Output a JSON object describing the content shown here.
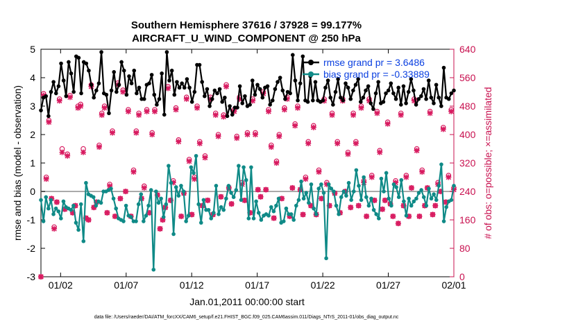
{
  "chart_data": {
    "type": "line",
    "title_line1": "Southern Hemisphere 37616 / 37928 = 99.177%",
    "title_line2": "AIRCRAFT_U_WIND_COMPONENT @ 250 hPa",
    "xlabel": "Jan.01,2011 00:00:00 start",
    "ylabel_left": "rmse and bias (model - observation)",
    "ylabel_right": "# of obs: o=possible; ×=assimilated",
    "footer": "data file: /Users/raeder/DAI/ATM_forcXX/CAM6_setup/f.e21.FHIST_BGC.f09_025.CAM6assim.011/Diags_NTrS_2011-01/obs_diag_output.nc",
    "xlim": [
      0.5,
      32.0
    ],
    "ylim_left": [
      -3,
      5
    ],
    "ylim_right": [
      0,
      640
    ],
    "x_ticks": [
      {
        "v": 2,
        "label": "01/02"
      },
      {
        "v": 7,
        "label": "01/07"
      },
      {
        "v": 12,
        "label": "01/12"
      },
      {
        "v": 17,
        "label": "01/17"
      },
      {
        "v": 22,
        "label": "01/22"
      },
      {
        "v": 27,
        "label": "01/27"
      },
      {
        "v": 32,
        "label": "02/01"
      }
    ],
    "y_ticks_left": [
      -3,
      -2,
      -1,
      0,
      1,
      2,
      3,
      4,
      5
    ],
    "y_ticks_right": [
      0,
      80,
      160,
      240,
      320,
      400,
      480,
      560,
      640
    ],
    "colors": {
      "rmse": "#000000",
      "bias": "#0f8a87",
      "obs": "#d81b60",
      "zero": "#aaaaaa",
      "legend_text": "#0a3fe0",
      "right_axis": "#c8104f"
    },
    "series": [
      {
        "name": "rmse grand pr = 3.6486",
        "color": "#000000",
        "values": [
          2.85,
          3.3,
          3.35,
          2.65,
          3.5,
          3.85,
          3.45,
          3.7,
          4.5,
          3.9,
          3.35,
          4.55,
          4.15,
          3.5,
          4.75,
          4.7,
          3.45,
          4.55,
          4.5,
          4.25,
          3.75,
          3.3,
          3.55,
          3.8,
          4.9,
          3.45,
          3.4,
          2.75,
          3.55,
          4.2,
          3.5,
          3.75,
          4.55,
          4.25,
          3.4,
          4.05,
          3.8,
          4.25,
          3.45,
          3.65,
          3.25,
          3.25,
          3.75,
          3.8,
          4.1,
          3.4,
          3.05,
          3.25,
          4.15,
          2.7,
          4.9,
          3.9,
          4.25,
          3.4,
          3.85,
          3.65,
          3.8,
          3.65,
          3.95,
          3.65,
          3.15,
          3.5,
          4.45,
          4.45,
          3.85,
          3.35,
          3.6,
          3.0,
          3.25,
          3.55,
          3.45,
          3.6,
          3.15,
          3.3,
          2.65,
          3.0,
          2.7,
          2.95,
          2.95,
          3.7,
          3.1,
          3.35,
          3.0,
          3.05,
          3.9,
          3.4,
          3.75,
          3.6,
          3.3,
          3.65,
          3.7,
          3.05,
          3.2,
          3.6,
          3.85,
          4.0,
          3.55,
          3.25,
          3.5,
          3.45,
          4.8,
          3.9,
          3.2,
          3.8,
          4.75,
          3.2,
          3.15,
          4.05,
          3.2,
          3.85,
          3.2,
          3.15,
          3.2,
          3.65,
          3.9,
          3.3,
          3.05,
          3.5,
          3.95,
          3.3,
          3.2,
          3.8,
          3.65,
          3.25,
          3.55,
          3.75,
          3.95,
          3.15,
          3.3,
          3.55,
          3.7,
          3.1,
          2.9,
          3.45,
          3.85,
          3.1,
          3.15,
          3.45,
          3.55,
          3.8,
          3.45,
          3.25,
          3.65,
          3.05,
          3.7,
          3.1,
          3.5,
          3.95,
          3.55,
          3.05,
          3.25,
          3.35,
          3.6,
          3.25,
          3.9,
          3.3,
          3.1,
          3.75,
          3.3,
          3.0,
          4.35,
          3.3,
          3.25,
          3.45,
          3.55
        ]
      },
      {
        "name": "bias grand pr = -0.33889",
        "color": "#0f8a87",
        "values": [
          -0.3,
          -1.05,
          -0.2,
          -0.6,
          -0.3,
          -0.8,
          -0.6,
          -0.7,
          -0.95,
          -0.35,
          -0.55,
          -0.6,
          -0.65,
          -0.5,
          -1.1,
          -1.35,
          -0.45,
          -1.75,
          0.3,
          -0.1,
          -0.15,
          -0.2,
          -0.5,
          -0.35,
          -0.4,
          0.0,
          0.0,
          0.05,
          0.1,
          -0.25,
          -0.6,
          -0.95,
          -1.0,
          -1.05,
          -0.5,
          -0.85,
          -0.9,
          -1.05,
          -1.05,
          -0.45,
          -0.1,
          -1.05,
          -0.85,
          -0.5,
          0.05,
          -2.75,
          0.0,
          -0.4,
          -0.25,
          -0.9,
          -0.45,
          0.9,
          0.3,
          -1.5,
          0.15,
          -0.15,
          0.2,
          0.0,
          -1.05,
          -0.85,
          0.85,
          0.65,
          1.25,
          -0.45,
          -1.1,
          -0.3,
          -0.65,
          -0.65,
          -0.95,
          -0.75,
          0.2,
          -0.8,
          -0.55,
          -0.65,
          -0.25,
          0.2,
          -0.05,
          -0.2,
          0.05,
          0.9,
          -0.3,
          0.85,
          0.4,
          -0.95,
          0.85,
          -0.95,
          -0.35,
          -0.75,
          -1.0,
          -0.85,
          -0.8,
          -0.85,
          -0.55,
          -0.7,
          -0.5,
          -0.25,
          -1.1,
          -1.05,
          -0.6,
          -0.8,
          -0.8,
          -1.0,
          -0.5,
          -0.3,
          0.35,
          -0.25,
          -0.05,
          -0.4,
          0.25,
          -0.6,
          -0.8,
          0.1,
          0.25,
          -0.05,
          -2.35,
          0.25,
          0.1,
          0.0,
          -0.5,
          -0.8,
          -0.2,
          0.0,
          -0.15,
          0.3,
          -0.3,
          0.0,
          0.75,
          0.2,
          -0.3,
          0.5,
          -0.2,
          -0.5,
          -0.25,
          -0.65,
          -0.8,
          -0.95,
          0.45,
          0.0,
          0.65,
          -0.25,
          -0.5,
          0.25,
          0.15,
          -0.2,
          0.4,
          -0.35,
          -0.85,
          -0.25,
          -0.5,
          -0.35,
          -0.25,
          -0.05,
          0.05,
          -0.2,
          -0.5,
          0.1,
          -0.25,
          -0.1,
          -0.3,
          0.2,
          0.95,
          -1.05,
          -0.55,
          -0.35,
          -0.3,
          0.2
        ]
      },
      {
        "name": "obs_possible",
        "color": "#d81b60",
        "values": [
          0,
          515,
          280,
          440,
          220,
          140,
          210,
          500,
          360,
          190,
          345,
          510,
          180,
          200,
          480,
          485,
          360,
          165,
          160,
          540,
          195,
          210,
          370,
          460,
          480,
          180,
          260,
          410,
          170,
          545,
          220,
          525,
          240,
          470,
          170,
          300,
          410,
          460,
          220,
          255,
          470,
          180,
          405,
          470,
          230,
          135,
          160,
          195,
          535,
          215,
          270,
          475,
          385,
          170,
          235,
          505,
          330,
          175,
          280,
          480,
          380,
          200,
          340,
          215,
          505,
          175,
          460,
          400,
          225,
          455,
          540,
          250,
          205,
          470,
          395,
          505,
          265,
          215,
          405,
          180,
          500,
          405,
          245,
          225,
          520,
          245,
          470,
          370,
          165,
          325,
          400,
          220,
          475,
          505,
          170,
          250,
          430,
          480,
          245,
          175,
          280,
          380,
          200,
          425,
          175,
          300,
          220,
          500,
          265,
          200,
          460,
          235,
          380,
          180,
          500,
          240,
          350,
          195,
          460,
          380,
          200,
          480,
          270,
          170,
          500,
          285,
          215,
          465,
          355,
          190,
          215,
          435,
          205,
          170,
          270,
          150,
          460,
          200,
          285,
          170,
          250,
          500,
          360,
          170,
          300,
          200,
          250,
          465,
          175,
          200,
          265,
          240,
          420,
          210,
          285,
          470,
          250
        ]
      },
      {
        "name": "obs_assimilated",
        "color": "#d81b60",
        "values": [
          0,
          510,
          275,
          435,
          220,
          135,
          210,
          495,
          350,
          190,
          340,
          505,
          180,
          200,
          475,
          480,
          350,
          165,
          160,
          535,
          195,
          210,
          365,
          455,
          475,
          180,
          255,
          405,
          170,
          540,
          220,
          520,
          240,
          465,
          170,
          295,
          405,
          455,
          220,
          250,
          465,
          180,
          400,
          465,
          230,
          135,
          160,
          195,
          530,
          215,
          265,
          470,
          380,
          170,
          235,
          500,
          325,
          175,
          275,
          475,
          375,
          200,
          335,
          215,
          500,
          175,
          455,
          395,
          225,
          450,
          535,
          250,
          205,
          465,
          390,
          500,
          260,
          215,
          400,
          180,
          495,
          400,
          245,
          225,
          515,
          245,
          465,
          365,
          165,
          320,
          395,
          220,
          470,
          500,
          170,
          250,
          425,
          475,
          245,
          175,
          275,
          375,
          200,
          420,
          175,
          295,
          220,
          495,
          260,
          200,
          455,
          235,
          375,
          180,
          495,
          240,
          345,
          195,
          455,
          375,
          200,
          475,
          265,
          170,
          495,
          280,
          215,
          460,
          350,
          190,
          215,
          430,
          205,
          170,
          265,
          150,
          455,
          200,
          280,
          170,
          250,
          495,
          355,
          170,
          295,
          200,
          250,
          460,
          175,
          200,
          260,
          240,
          415,
          210,
          280,
          465,
          245
        ]
      }
    ]
  }
}
